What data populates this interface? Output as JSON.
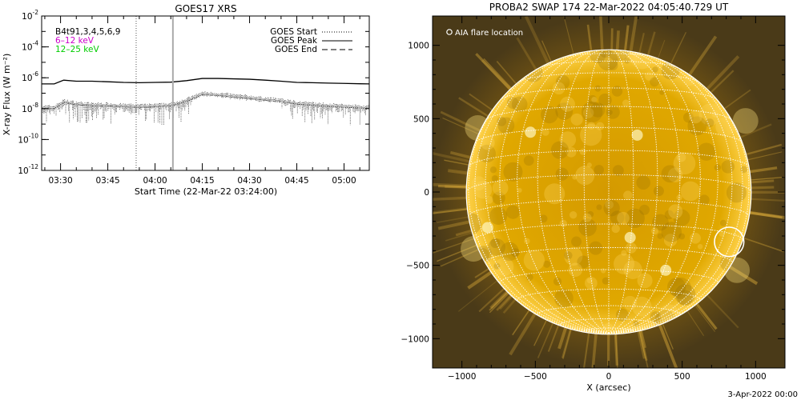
{
  "colors": {
    "background": "#ffffff",
    "axis": "#000000",
    "low_energy_channel": "#cc00cc",
    "high_energy_channel": "#00cc00",
    "sun_disk": "#f0b000",
    "sun_corona": "#6a4a08",
    "grid": "#ffffff"
  },
  "footer": {
    "date_stamp": "3-Apr-2022 00:00"
  },
  "chart_data": [
    {
      "type": "line",
      "title": "GOES17 XRS",
      "xlabel": "Start Time (22-Mar-22 03:24:00)",
      "ylabel": "X-ray Flux (W m⁻²)",
      "y_scale": "log",
      "ylim": [
        1e-12,
        0.01
      ],
      "xlim": [
        "03:24",
        "05:08"
      ],
      "x_tick_labels": [
        "03:30",
        "03:45",
        "04:00",
        "04:15",
        "04:30",
        "04:45",
        "05:00"
      ],
      "y_tick_labels": [
        {
          "base": "10",
          "exp": "-2",
          "value": 0.01
        },
        {
          "base": "10",
          "exp": "-4",
          "value": 0.0001
        },
        {
          "base": "10",
          "exp": "-6",
          "value": 1e-06
        },
        {
          "base": "10",
          "exp": "-8",
          "value": 1e-08
        },
        {
          "base": "10",
          "exp": "-10",
          "value": 1e-10
        },
        {
          "base": "10",
          "exp": "-12",
          "value": 1e-12
        }
      ],
      "channel_legend": [
        {
          "label": "B4t91,3,4,5,6,9",
          "color": "#000000"
        },
        {
          "label": "6–12 keV",
          "color": "#cc00cc"
        },
        {
          "label": "12–25 keV",
          "color": "#00cc00"
        }
      ],
      "event_legend": [
        {
          "label": "GOES Start",
          "style": "dotted"
        },
        {
          "label": "GOES Peak",
          "style": "solid"
        },
        {
          "label": "GOES End",
          "style": "dashed"
        }
      ],
      "event_markers": [
        {
          "kind": "GOES Start",
          "time": "03:54",
          "style": "dotted"
        },
        {
          "kind": "Observation",
          "time": "04:05:40",
          "style": "solid-gray"
        }
      ],
      "series": [
        {
          "name": "",
          "color": "#000000",
          "style": "solid",
          "x": [
            "03:24",
            "03:28",
            "03:31",
            "03:35",
            "03:40",
            "03:45",
            "03:50",
            "03:55",
            "04:00",
            "04:05",
            "04:10",
            "04:15",
            "04:20",
            "04:25",
            "04:30",
            "04:35",
            "04:40",
            "04:45",
            "04:50",
            "04:55",
            "05:00",
            "05:05",
            "05:08"
          ],
          "y": [
            4e-07,
            4e-07,
            7e-07,
            6e-07,
            6e-07,
            5.5e-07,
            5e-07,
            4.8e-07,
            5e-07,
            5.2e-07,
            6.5e-07,
            9e-07,
            9e-07,
            8.5e-07,
            8e-07,
            7e-07,
            6e-07,
            5e-07,
            4.8e-07,
            4.5e-07,
            4.3e-07,
            4.1e-07,
            4e-07
          ]
        },
        {
          "name": "",
          "color": "#000000",
          "style": "dotted-noisy",
          "x": [
            "03:24",
            "03:28",
            "03:31",
            "03:35",
            "03:40",
            "03:45",
            "03:50",
            "03:55",
            "04:00",
            "04:05",
            "04:10",
            "04:15",
            "04:20",
            "04:25",
            "04:30",
            "04:35",
            "04:40",
            "04:45",
            "04:50",
            "04:55",
            "05:00",
            "05:05",
            "05:08"
          ],
          "y": [
            1e-08,
            1e-08,
            2.5e-08,
            1.8e-08,
            1.5e-08,
            1.5e-08,
            1.3e-08,
            1.2e-08,
            1.3e-08,
            1.5e-08,
            3e-08,
            8e-08,
            7e-08,
            5.5e-08,
            4.5e-08,
            3.5e-08,
            2.8e-08,
            2e-08,
            1.6e-08,
            1.4e-08,
            1.2e-08,
            1.1e-08,
            1e-08
          ]
        }
      ]
    },
    {
      "type": "image",
      "title": "PROBA2 SWAP 174 22-Mar-2022 04:05:40.729 UT",
      "xlabel": "X (arcsec)",
      "ylabel": "",
      "xlim": [
        -1200,
        1200
      ],
      "ylim": [
        -1200,
        1200
      ],
      "x_tick_labels": [
        "−1000",
        "−500",
        "0",
        "500",
        "1000"
      ],
      "x_tick_values": [
        -1000,
        -500,
        0,
        500,
        1000
      ],
      "y_tick_labels": [
        "1000",
        "500",
        "0",
        "−500",
        "−1000"
      ],
      "y_tick_values": [
        1000,
        500,
        0,
        -500,
        -1000
      ],
      "solar_radius_arcsec": 970,
      "legend": {
        "symbol": "circle",
        "label": "AIA flare location"
      },
      "flare_marker": {
        "x": 820,
        "y": -340,
        "radius": 100
      }
    }
  ]
}
